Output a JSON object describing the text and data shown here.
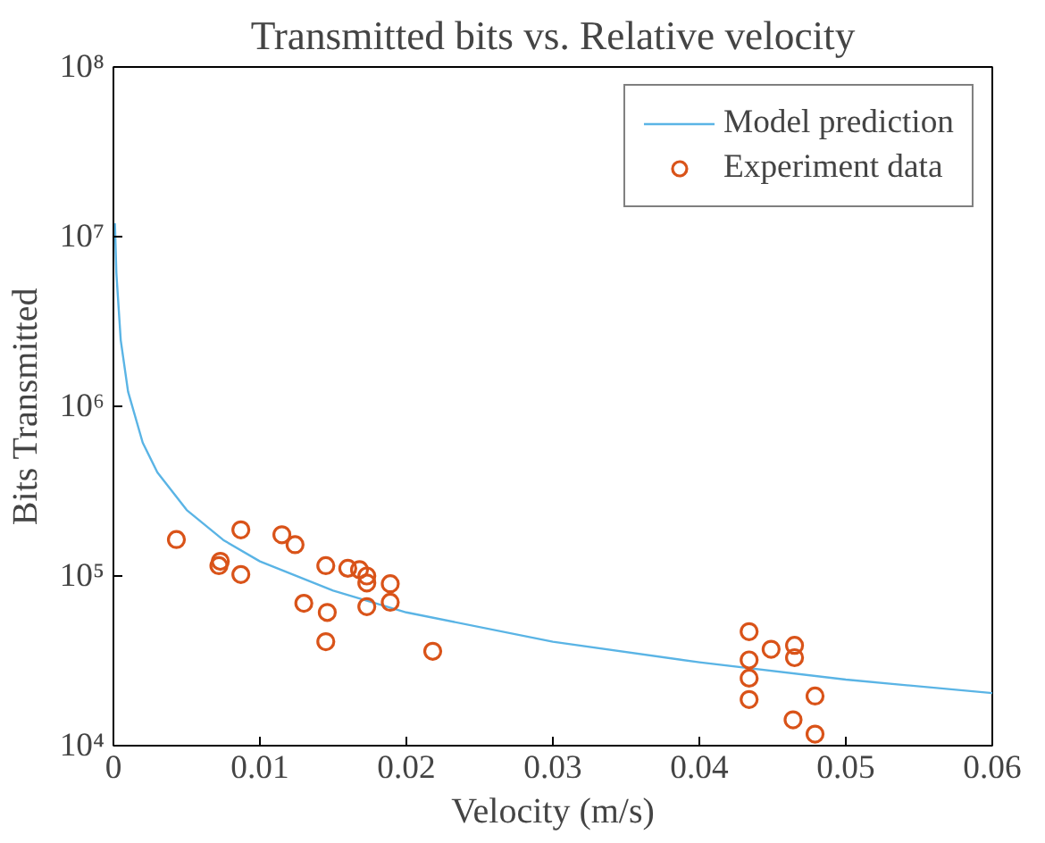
{
  "chart_data": {
    "type": "scatter",
    "title": "Transmitted bits vs. Relative velocity",
    "xlabel": "Velocity (m/s)",
    "ylabel": "Bits Transmitted",
    "log": "y",
    "grid": false,
    "legend": "top right",
    "xlim": [
      0,
      0.06
    ],
    "xticks": [
      0,
      0.01,
      0.02,
      0.03,
      0.04,
      0.05,
      0.06
    ],
    "ylim": [
      10000,
      100000000
    ],
    "yticks": [
      {
        "value": 10000,
        "label": "10⁴"
      },
      {
        "value": 100000,
        "label": "10⁵"
      },
      {
        "value": 1000000,
        "label": "10⁶"
      },
      {
        "value": 10000000,
        "label": "10⁷"
      },
      {
        "value": 100000000,
        "label": "10⁸"
      }
    ],
    "series": [
      {
        "name": "Model prediction",
        "type": "line",
        "color": "#5ab4e5",
        "marker": "none",
        "x": [
          0.0001,
          0.0002,
          0.0005,
          0.001,
          0.002,
          0.003,
          0.005,
          0.0075,
          0.01,
          0.015,
          0.02,
          0.03,
          0.04,
          0.05,
          0.06
        ],
        "values": [
          12000000,
          6100000,
          2450000,
          1220000,
          610000,
          408000,
          245000,
          163000,
          122000,
          82000,
          61000,
          41000,
          31000,
          24500,
          20400
        ]
      },
      {
        "name": "Experiment data",
        "color": "#d95319",
        "marker": "circle",
        "x": [
          0.0043,
          0.0073,
          0.0072,
          0.0087,
          0.0087,
          0.0115,
          0.0124,
          0.013,
          0.0145,
          0.0146,
          0.0145,
          0.016,
          0.0168,
          0.0173,
          0.0173,
          0.0173,
          0.0189,
          0.0189,
          0.0218,
          0.0434,
          0.0434,
          0.0434,
          0.0434,
          0.0449,
          0.0465,
          0.0465,
          0.0479,
          0.0464,
          0.0479
        ],
        "values": [
          164000,
          122000,
          115000,
          187000,
          102000,
          175000,
          153000,
          69000,
          115000,
          61000,
          41000,
          111000,
          109000,
          100000,
          91000,
          66000,
          90000,
          70000,
          36000,
          47000,
          32000,
          25000,
          18700,
          37000,
          39000,
          33000,
          19600,
          14200,
          11700
        ]
      }
    ]
  }
}
